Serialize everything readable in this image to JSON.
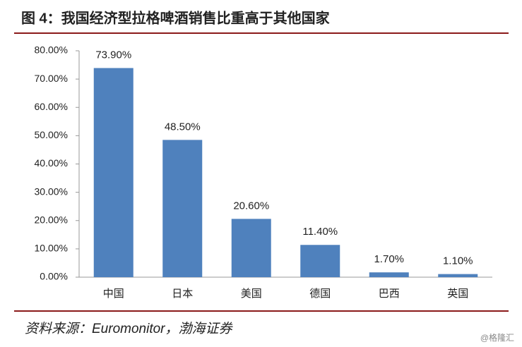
{
  "chart_data": {
    "type": "bar",
    "title": "图 4：我国经济型拉格啤酒销售比重高于其他国家",
    "source": "资料来源：Euromonitor，渤海证券",
    "watermark": "@格隆汇",
    "categories": [
      "中国",
      "日本",
      "美国",
      "德国",
      "巴西",
      "英国"
    ],
    "values": [
      73.9,
      48.5,
      20.6,
      11.4,
      1.7,
      1.1
    ],
    "value_labels": [
      "73.90%",
      "48.50%",
      "20.60%",
      "11.40%",
      "1.70%",
      "1.10%"
    ],
    "color": "#4f81bd",
    "ylim": [
      0,
      80
    ],
    "yticks": [
      {
        "value": 0,
        "label": "0.00%"
      },
      {
        "value": 10,
        "label": "10.00%"
      },
      {
        "value": 20,
        "label": "20.00%"
      },
      {
        "value": 30,
        "label": "30.00%"
      },
      {
        "value": 40,
        "label": "40.00%"
      },
      {
        "value": 50,
        "label": "50.00%"
      },
      {
        "value": 60,
        "label": "60.00%"
      },
      {
        "value": 70,
        "label": "70.00%"
      },
      {
        "value": 80,
        "label": "80.00%"
      }
    ],
    "grid": false
  }
}
